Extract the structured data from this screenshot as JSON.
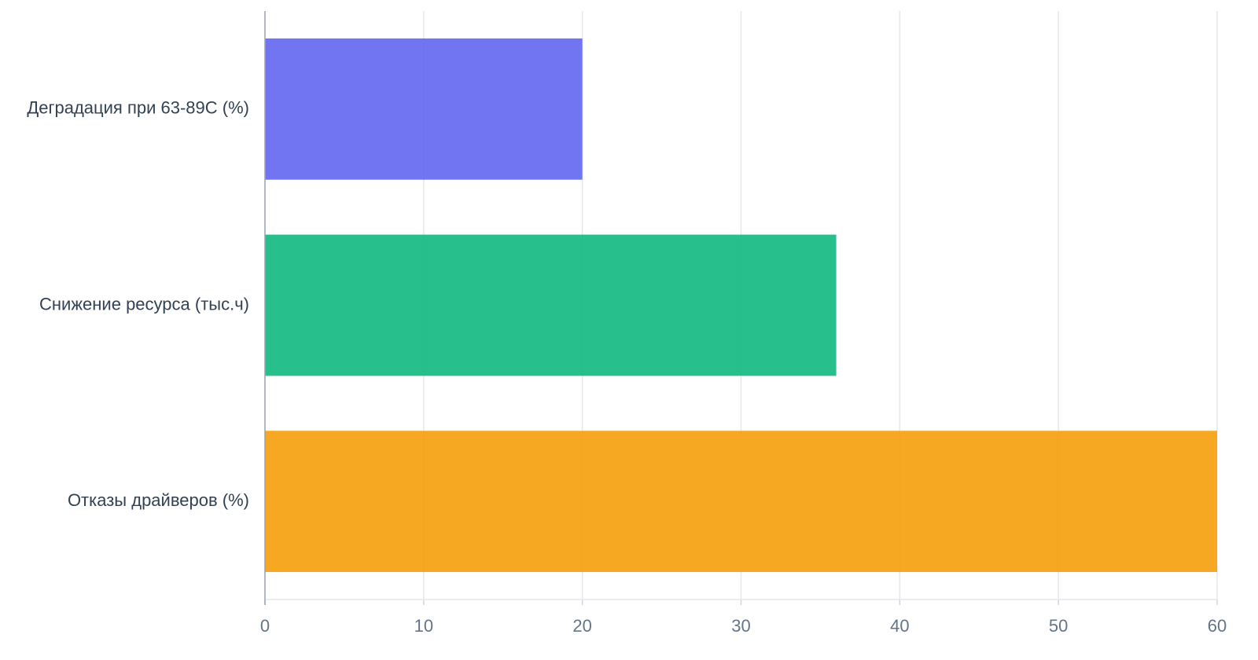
{
  "chart_data": {
    "type": "bar",
    "horizontal": true,
    "categories": [
      "Деградация при 63-89C (%)",
      "Снижение ресурса (тыс.ч)",
      "Отказы драйверов (%)"
    ],
    "values": [
      20,
      36,
      60
    ],
    "colors": [
      "#6366f1",
      "#10b981",
      "#f59e0b"
    ],
    "xlim": [
      0,
      60
    ],
    "xticks": [
      0,
      10,
      20,
      30,
      40,
      50,
      60
    ],
    "grid": true
  }
}
